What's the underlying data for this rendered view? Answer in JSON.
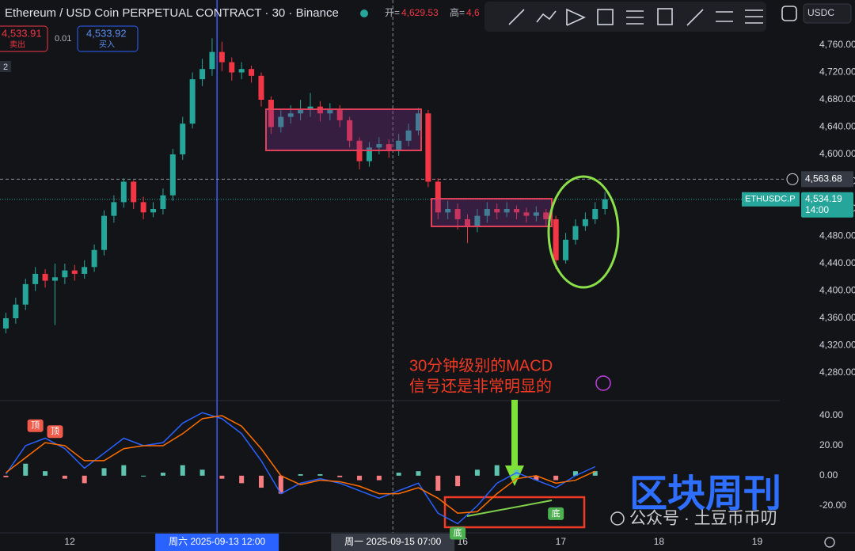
{
  "header": {
    "title": "Ethereum / USD Coin PERPETUAL CONTRACT · 30 · Binance",
    "open_label": "开=",
    "open_value": "4,629.53",
    "high_label": "高=",
    "high_value": "4,6",
    "currency": "USDC"
  },
  "order_panel": {
    "sell_price": "4,533.91",
    "sell": "卖出",
    "size": "0.01",
    "buy_price": "4,533.92",
    "buy": "买入",
    "badge": "2"
  },
  "annotation": [
    "30分钟级别的MACD",
    "信号还是非常明显的"
  ],
  "watermark": {
    "brand": "区块周刊",
    "account": "公众号 · 土豆币币叨"
  },
  "chart_data": [
    {
      "type": "candlestick",
      "title": "Ethereum / USD Coin PERPETUAL CONTRACT · 30 · Binance",
      "x": [
        11.35,
        11.45,
        11.55,
        11.65,
        11.75,
        11.85,
        11.95,
        12.05,
        12.15,
        12.25,
        12.35,
        12.45,
        12.55,
        12.65,
        12.75,
        12.85,
        12.95,
        13.05,
        13.15,
        13.25,
        13.35,
        13.45,
        13.55,
        13.65,
        13.75,
        13.85,
        13.95,
        14.05,
        14.15,
        14.25,
        14.35,
        14.45,
        14.55,
        14.65,
        14.75,
        14.85,
        14.95,
        15.05,
        15.15,
        15.25,
        15.35,
        15.45,
        15.55,
        15.65,
        15.75,
        15.85,
        15.95,
        16.05,
        16.15,
        16.25,
        16.35,
        16.45,
        16.55,
        16.65,
        16.75,
        16.85,
        16.95,
        17.05,
        17.15,
        17.25,
        17.35,
        17.45
      ],
      "open": [
        4345,
        4360,
        4380,
        4410,
        4425,
        4415,
        4420,
        4430,
        4425,
        4435,
        4460,
        4510,
        4530,
        4560,
        4530,
        4515,
        4520,
        4540,
        4600,
        4645,
        4710,
        4725,
        4750,
        4735,
        4720,
        4725,
        4715,
        4680,
        4640,
        4655,
        4660,
        4665,
        4670,
        4660,
        4665,
        4650,
        4620,
        4590,
        4610,
        4615,
        4605,
        4620,
        4635,
        4660,
        4560,
        4515,
        4520,
        4505,
        4495,
        4510,
        4520,
        4515,
        4520,
        4515,
        4510,
        4515,
        4505,
        4445,
        4475,
        4495,
        4505,
        4520
      ],
      "high": [
        4368,
        4390,
        4418,
        4435,
        4432,
        4440,
        4440,
        4438,
        4445,
        4468,
        4518,
        4540,
        4565,
        4562,
        4538,
        4530,
        4550,
        4608,
        4655,
        4720,
        4740,
        4770,
        4765,
        4742,
        4735,
        4730,
        4720,
        4685,
        4665,
        4672,
        4680,
        4690,
        4678,
        4675,
        4672,
        4655,
        4625,
        4618,
        4625,
        4622,
        4630,
        4645,
        4668,
        4665,
        4565,
        4532,
        4528,
        4512,
        4520,
        4530,
        4528,
        4530,
        4525,
        4522,
        4524,
        4520,
        4510,
        4485,
        4505,
        4515,
        4530,
        4545
      ],
      "low": [
        4338,
        4352,
        4372,
        4400,
        4405,
        4350,
        4410,
        4415,
        4418,
        4428,
        4452,
        4500,
        4522,
        4520,
        4505,
        4508,
        4512,
        4532,
        4592,
        4638,
        4700,
        4715,
        4722,
        4708,
        4710,
        4705,
        4670,
        4630,
        4632,
        4645,
        4650,
        4655,
        4648,
        4650,
        4640,
        4610,
        4578,
        4582,
        4600,
        4595,
        4598,
        4612,
        4628,
        4552,
        4505,
        4505,
        4490,
        4470,
        4486,
        4500,
        4505,
        4508,
        4505,
        4500,
        4502,
        4495,
        4432,
        4440,
        4468,
        4488,
        4498,
        4512
      ],
      "close": [
        4360,
        4380,
        4410,
        4425,
        4415,
        4420,
        4430,
        4425,
        4435,
        4460,
        4510,
        4530,
        4560,
        4530,
        4515,
        4520,
        4540,
        4600,
        4645,
        4710,
        4725,
        4750,
        4735,
        4720,
        4725,
        4715,
        4680,
        4640,
        4655,
        4660,
        4665,
        4670,
        4660,
        4665,
        4650,
        4620,
        4590,
        4610,
        4615,
        4605,
        4620,
        4635,
        4660,
        4560,
        4515,
        4520,
        4505,
        4495,
        4510,
        4520,
        4515,
        4520,
        4515,
        4510,
        4515,
        4505,
        4445,
        4475,
        4495,
        4505,
        4520,
        4534.19
      ],
      "up_color": "#26a69a",
      "down_color": "#f23645",
      "xlim": [
        11.29,
        19.23
      ],
      "xticks": [
        12,
        16,
        17,
        18,
        19
      ],
      "ylim": [
        4240,
        4800
      ],
      "yticks": [
        {
          "value": 4280,
          "label": "4,280.00"
        },
        {
          "value": 4320,
          "label": "4,320.00"
        },
        {
          "value": 4360,
          "label": "4,360.00"
        },
        {
          "value": 4400,
          "label": "4,400.00"
        },
        {
          "value": 4440,
          "label": "4,440.00"
        },
        {
          "value": 4480,
          "label": "4,480.00"
        },
        {
          "value": 4520,
          "label": "4,520.00"
        },
        {
          "value": 4560,
          "label": "4,560.00"
        },
        {
          "value": 4600,
          "label": "4,600.00"
        },
        {
          "value": 4640,
          "label": "4,640.00"
        },
        {
          "value": 4680,
          "label": "4,680.00"
        },
        {
          "value": 4720,
          "label": "4,720.00"
        },
        {
          "value": 4760,
          "label": "4,760.00"
        }
      ],
      "grid": false,
      "crosshair_price": {
        "value": 4563.68,
        "label": "4,563.68"
      },
      "last_price": {
        "value": 4534.19,
        "label": "4,534.19",
        "symbol": "ETHUSDC.P",
        "countdown": "14:00"
      },
      "cursors": [
        {
          "x": 13.5,
          "label": "周六 2025-09-13 12:00"
        },
        {
          "x": 15.29,
          "label": "周一 2025-09-15 07:00"
        }
      ]
    },
    {
      "type": "macd",
      "x": [
        11.35,
        11.55,
        11.75,
        11.95,
        12.15,
        12.35,
        12.55,
        12.75,
        12.95,
        13.15,
        13.35,
        13.55,
        13.75,
        13.95,
        14.15,
        14.35,
        14.55,
        14.75,
        14.95,
        15.15,
        15.35,
        15.55,
        15.75,
        15.95,
        16.15,
        16.35,
        16.55,
        16.75,
        16.95,
        17.15,
        17.35
      ],
      "dif": [
        1,
        20,
        25,
        18,
        5,
        15,
        25,
        20,
        22,
        35,
        42,
        38,
        28,
        10,
        -12,
        -5,
        -2,
        -5,
        -10,
        -15,
        -10,
        -5,
        -25,
        -32,
        -20,
        -5,
        2,
        -3,
        -8,
        0,
        6
      ],
      "dea": [
        2,
        12,
        22,
        20,
        10,
        10,
        18,
        20,
        20,
        28,
        38,
        40,
        33,
        18,
        0,
        -6,
        -3,
        -4,
        -7,
        -12,
        -12,
        -8,
        -15,
        -25,
        -24,
        -12,
        -2,
        0,
        -5,
        -3,
        3
      ],
      "histogram": [
        -1,
        8,
        3,
        -2,
        -5,
        5,
        7,
        0,
        2,
        7,
        4,
        -2,
        -5,
        -8,
        -12,
        1,
        1,
        -1,
        -3,
        -3,
        2,
        3,
        -10,
        -7,
        4,
        7,
        4,
        -3,
        -3,
        3,
        3
      ],
      "dif_color": "#2962ff",
      "dea_color": "#ff6d00",
      "ylim": [
        -37,
        49
      ],
      "yticks": [
        {
          "value": 40,
          "label": "40.00"
        },
        {
          "value": 20,
          "label": "20.00"
        },
        {
          "value": 0,
          "label": "0.00"
        },
        {
          "value": -20,
          "label": "-20.00"
        }
      ],
      "signals": [
        {
          "label": "顶",
          "x": 11.65,
          "y": 27
        },
        {
          "label": "顶",
          "x": 11.85,
          "y": 23
        },
        {
          "label": "底",
          "x": 15.95,
          "y": -32
        },
        {
          "label": "底",
          "x": 16.95,
          "y": -19
        }
      ]
    }
  ]
}
